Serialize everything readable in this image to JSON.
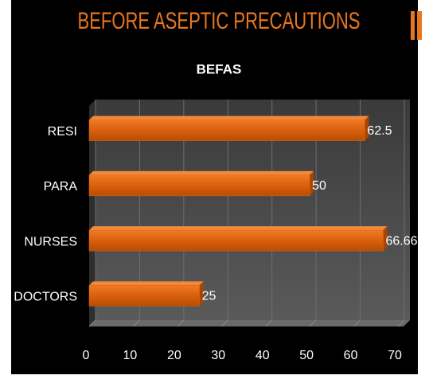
{
  "header": {
    "title": "BEFORE ASEPTIC PRECAUTIONS"
  },
  "chart_data": {
    "type": "hbar",
    "title": "BEFAS",
    "categories": [
      "DOCTORS",
      "NURSES",
      "PARA",
      "RESI"
    ],
    "values": [
      25,
      66.66,
      50,
      62.5
    ],
    "color": "#e0650f",
    "xlim": [
      0,
      70
    ],
    "xticks": [
      0,
      10,
      20,
      30,
      40,
      50,
      60,
      70
    ],
    "grid": true
  }
}
